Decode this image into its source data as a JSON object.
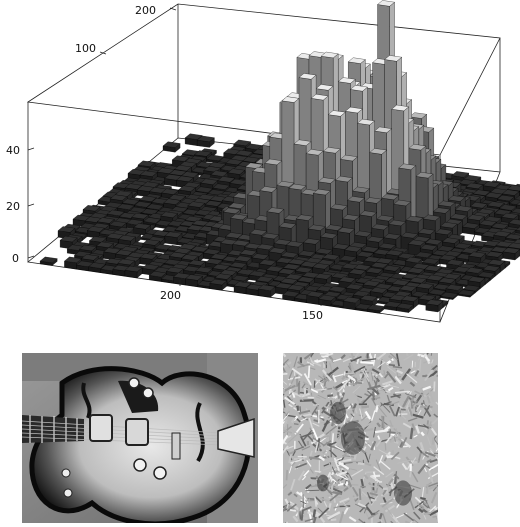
{
  "chart_data": {
    "type": "bar3d",
    "title": "",
    "xlabel": "",
    "ylabel": "",
    "zlabel": "",
    "x_ticks": [
      150,
      200
    ],
    "y_ticks": [
      100,
      200
    ],
    "z_ticks": [
      0,
      20,
      40
    ],
    "xlim": [
      110,
      250
    ],
    "ylim": [
      0,
      220
    ],
    "zlim": [
      0,
      55
    ],
    "grid": false,
    "description_values": {
      "peak_height": 52,
      "background_level": 2
    }
  },
  "images": [
    {
      "name": "guitar-photo",
      "content": "grayscale archtop electric guitar body"
    },
    {
      "name": "texture-photo",
      "content": "grayscale grass texture"
    }
  ]
}
